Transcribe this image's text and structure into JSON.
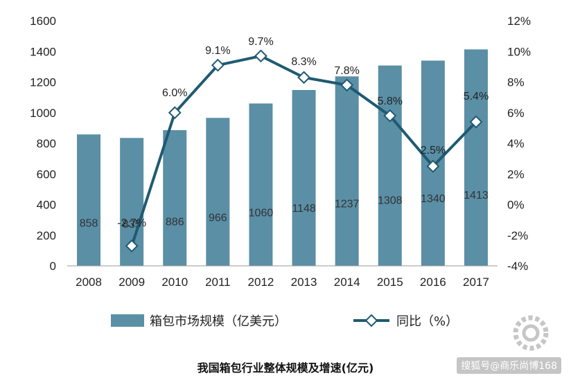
{
  "chart_data": {
    "type": "bar",
    "categories": [
      "2008",
      "2009",
      "2010",
      "2011",
      "2012",
      "2013",
      "2014",
      "2015",
      "2016",
      "2017"
    ],
    "series": [
      {
        "name": "箱包市场规模（亿美元）",
        "type": "bar",
        "axis": "left",
        "values": [
          858,
          835,
          886,
          966,
          1060,
          1148,
          1237,
          1308,
          1340,
          1413
        ],
        "labels": [
          "858",
          "835",
          "886",
          "966",
          "1060",
          "1148",
          "1237",
          "1308",
          "1340",
          "1413"
        ],
        "color": "#5a8fa6"
      },
      {
        "name": "同比（%）",
        "type": "line",
        "axis": "right",
        "values": [
          null,
          -2.7,
          6.0,
          9.1,
          9.7,
          8.3,
          7.8,
          5.8,
          2.5,
          5.4
        ],
        "labels": [
          "",
          "-2.7%",
          "6.0%",
          "9.1%",
          "9.7%",
          "8.3%",
          "7.8%",
          "5.8%",
          "2.5%",
          "5.4%"
        ],
        "color": "#1f5a72"
      }
    ],
    "y_left": {
      "ylim": [
        0,
        1600
      ],
      "ticks": [
        "0",
        "200",
        "400",
        "600",
        "800",
        "1000",
        "1200",
        "1400",
        "1600"
      ]
    },
    "y_right": {
      "ylim": [
        -4,
        12
      ],
      "ticks": [
        "-4%",
        "-2%",
        "0%",
        "2%",
        "4%",
        "6%",
        "8%",
        "10%",
        "12%"
      ]
    },
    "grid": false,
    "legend_position": "bottom",
    "title": "我国箱包行业整体规模及增速(亿元)"
  },
  "watermark": "搜狐号@商乐尚博168"
}
